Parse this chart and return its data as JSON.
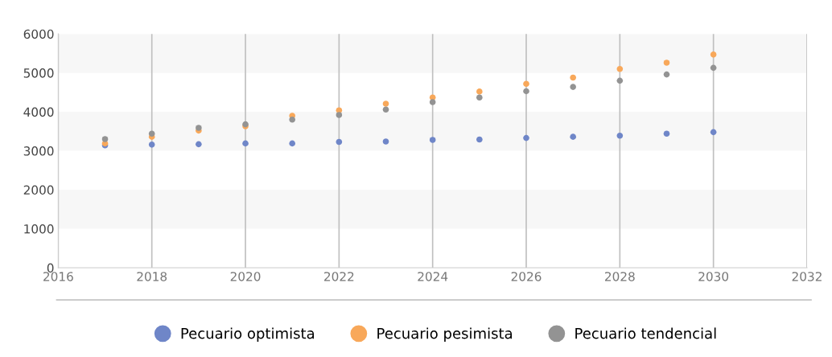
{
  "chart_data": {
    "type": "scatter",
    "x": [
      2017,
      2018,
      2019,
      2020,
      2021,
      2022,
      2023,
      2024,
      2025,
      2026,
      2027,
      2028,
      2029,
      2030
    ],
    "series": [
      {
        "name": "Pecuario optimista",
        "color": "#6f86c8",
        "values": [
          3140,
          3160,
          3170,
          3190,
          3190,
          3230,
          3240,
          3280,
          3290,
          3330,
          3360,
          3390,
          3440,
          3480
        ]
      },
      {
        "name": "Pecuario pesimista",
        "color": "#f8a85a",
        "values": [
          3190,
          3360,
          3520,
          3630,
          3900,
          4040,
          4210,
          4370,
          4520,
          4720,
          4880,
          5100,
          5260,
          5470
        ]
      },
      {
        "name": "Pecuario tendencial",
        "color": "#939393",
        "values": [
          3300,
          3440,
          3590,
          3680,
          3800,
          3920,
          4060,
          4250,
          4370,
          4530,
          4640,
          4800,
          4960,
          5130
        ]
      }
    ],
    "xlim": [
      2016,
      2032
    ],
    "xticks": [
      2016,
      2018,
      2020,
      2022,
      2024,
      2026,
      2028,
      2030,
      2032
    ],
    "ylim": [
      0,
      6000
    ],
    "yticks": [
      0,
      1000,
      2000,
      3000,
      4000,
      5000,
      6000
    ],
    "bands": [
      {
        "axis": "y",
        "from": 1000,
        "to": 2000,
        "color": "#f7f7f7"
      },
      {
        "axis": "y",
        "from": 3000,
        "to": 4000,
        "color": "#f7f7f7"
      },
      {
        "axis": "y",
        "from": 5000,
        "to": 6000,
        "color": "#f7f7f7"
      }
    ],
    "grid": "x",
    "legend": "bottom",
    "marker": "circle"
  }
}
